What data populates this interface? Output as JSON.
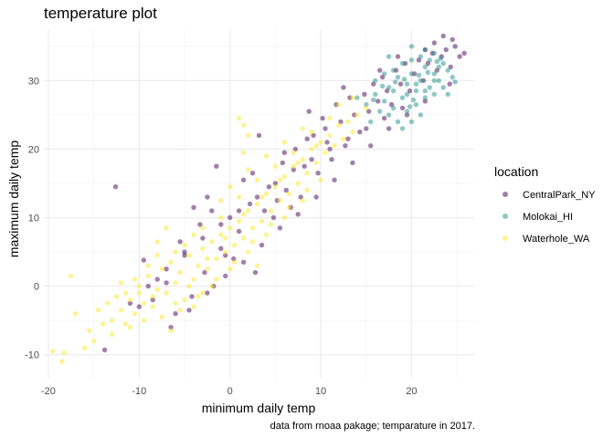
{
  "chart_data": {
    "type": "scatter",
    "title": "temperature plot",
    "xlabel": "minimum daily temp",
    "ylabel": "maximum daily temp",
    "caption": "data from rnoaa pakage; temparature in 2017.",
    "xlim": [
      -20.5,
      27.0
    ],
    "ylim": [
      -13.5,
      37.5
    ],
    "x_ticks": [
      -20,
      -10,
      0,
      10,
      20
    ],
    "y_ticks": [
      -10,
      0,
      10,
      20,
      30
    ],
    "grid": true,
    "legend": {
      "title": "location",
      "placement": "right"
    },
    "point_opacity": 0.5,
    "series": [
      {
        "name": "CentralPark_NY",
        "color": "#440154",
        "points": [
          [
            -13.8,
            -9.3
          ],
          [
            -12.6,
            14.5
          ],
          [
            -10.0,
            -3.0
          ],
          [
            -9.5,
            3.8
          ],
          [
            -8.5,
            -2.0
          ],
          [
            -8.0,
            1.0
          ],
          [
            -7.0,
            0.5
          ],
          [
            -6.0,
            -4.0
          ],
          [
            -5.5,
            6.5
          ],
          [
            -5.0,
            5.0
          ],
          [
            -4.2,
            -1.5
          ],
          [
            -4.0,
            11.5
          ],
          [
            -3.3,
            9.0
          ],
          [
            -2.8,
            2.0
          ],
          [
            -2.5,
            13.0
          ],
          [
            -1.8,
            0.0
          ],
          [
            -1.5,
            17.5
          ],
          [
            -1.0,
            5.5
          ],
          [
            -0.5,
            4.5
          ],
          [
            0.0,
            10.0
          ],
          [
            0.4,
            4.0
          ],
          [
            1.0,
            8.0
          ],
          [
            1.5,
            15.5
          ],
          [
            2.2,
            12.0
          ],
          [
            2.8,
            2.0
          ],
          [
            3.2,
            22.0
          ],
          [
            3.8,
            11.0
          ],
          [
            4.3,
            14.5
          ],
          [
            4.8,
            10.0
          ],
          [
            5.2,
            12.5
          ],
          [
            5.8,
            18.0
          ],
          [
            6.2,
            14.0
          ],
          [
            6.7,
            11.5
          ],
          [
            7.2,
            20.0
          ],
          [
            7.8,
            13.0
          ],
          [
            8.2,
            17.5
          ],
          [
            8.7,
            25.5
          ],
          [
            9.2,
            22.0
          ],
          [
            9.7,
            16.5
          ],
          [
            10.2,
            24.5
          ],
          [
            10.7,
            21.0
          ],
          [
            11.2,
            18.5
          ],
          [
            11.7,
            26.5
          ],
          [
            12.2,
            24.0
          ],
          [
            12.7,
            20.5
          ],
          [
            13.2,
            27.5
          ],
          [
            13.7,
            25.0
          ],
          [
            14.3,
            22.5
          ],
          [
            14.8,
            28.0
          ],
          [
            15.3,
            25.5
          ],
          [
            15.8,
            29.5
          ],
          [
            16.3,
            27.0
          ],
          [
            16.8,
            30.5
          ],
          [
            17.3,
            28.5
          ],
          [
            17.8,
            26.5
          ],
          [
            18.3,
            31.5
          ],
          [
            18.8,
            29.5
          ],
          [
            19.3,
            32.5
          ],
          [
            19.8,
            28.5
          ],
          [
            20.3,
            31.0
          ],
          [
            20.8,
            33.0
          ],
          [
            21.3,
            30.0
          ],
          [
            21.8,
            32.5
          ],
          [
            22.3,
            34.0
          ],
          [
            22.8,
            31.5
          ],
          [
            23.3,
            33.5
          ],
          [
            23.8,
            34.5
          ],
          [
            24.3,
            32.0
          ],
          [
            24.8,
            35.0
          ],
          [
            25.3,
            33.5
          ],
          [
            25.8,
            34.0
          ],
          [
            23.5,
            36.5
          ],
          [
            24.2,
            29.5
          ],
          [
            21.5,
            27.0
          ],
          [
            19.0,
            26.0
          ],
          [
            17.0,
            24.5
          ],
          [
            15.0,
            23.0
          ],
          [
            13.0,
            21.5
          ],
          [
            11.0,
            20.0
          ],
          [
            9.0,
            18.5
          ],
          [
            7.0,
            17.0
          ],
          [
            5.0,
            15.0
          ],
          [
            3.0,
            13.0
          ],
          [
            1.0,
            11.0
          ],
          [
            -1.0,
            9.0
          ],
          [
            -3.0,
            7.0
          ],
          [
            -5.0,
            4.5
          ],
          [
            -7.0,
            2.5
          ],
          [
            -9.0,
            0.0
          ],
          [
            -11.0,
            -2.5
          ],
          [
            -6.5,
            -6.0
          ],
          [
            -4.5,
            -3.5
          ],
          [
            -2.5,
            -1.0
          ],
          [
            -0.5,
            1.5
          ],
          [
            1.5,
            3.5
          ],
          [
            3.5,
            6.0
          ],
          [
            5.5,
            8.5
          ],
          [
            7.5,
            10.5
          ],
          [
            9.5,
            13.0
          ],
          [
            11.5,
            15.5
          ],
          [
            13.5,
            18.0
          ],
          [
            15.5,
            20.5
          ],
          [
            17.5,
            23.0
          ],
          [
            19.5,
            25.0
          ],
          [
            21.5,
            34.5
          ],
          [
            22.5,
            35.5
          ],
          [
            24.5,
            36.0
          ],
          [
            18.5,
            33.5
          ],
          [
            16.5,
            31.5
          ],
          [
            12.5,
            29.0
          ],
          [
            -2.0,
            11.0
          ],
          [
            2.5,
            16.5
          ],
          [
            6.0,
            19.5
          ],
          [
            8.5,
            21.5
          ],
          [
            10.5,
            23.0
          ]
        ]
      },
      {
        "name": "Molokai_HI",
        "color": "#21908C",
        "points": [
          [
            15.0,
            26.5
          ],
          [
            15.5,
            24.0
          ],
          [
            16.0,
            28.0
          ],
          [
            16.5,
            25.5
          ],
          [
            17.0,
            27.0
          ],
          [
            17.5,
            29.0
          ],
          [
            18.0,
            26.0
          ],
          [
            18.5,
            30.5
          ],
          [
            19.0,
            27.5
          ],
          [
            19.5,
            29.5
          ],
          [
            20.0,
            31.0
          ],
          [
            20.5,
            28.5
          ],
          [
            21.0,
            30.0
          ],
          [
            21.5,
            32.0
          ],
          [
            22.0,
            29.0
          ],
          [
            22.5,
            31.0
          ],
          [
            23.0,
            30.0
          ],
          [
            23.5,
            32.5
          ],
          [
            24.0,
            31.5
          ],
          [
            24.5,
            30.5
          ],
          [
            18.0,
            31.5
          ],
          [
            19.0,
            32.5
          ],
          [
            20.0,
            33.0
          ],
          [
            21.0,
            33.5
          ],
          [
            22.0,
            33.0
          ],
          [
            23.0,
            32.0
          ],
          [
            17.5,
            25.0
          ],
          [
            18.5,
            24.0
          ],
          [
            19.5,
            25.5
          ],
          [
            20.5,
            26.5
          ],
          [
            21.5,
            27.5
          ],
          [
            22.5,
            28.0
          ],
          [
            20.0,
            24.0
          ],
          [
            19.0,
            23.0
          ],
          [
            21.0,
            25.0
          ],
          [
            17.0,
            31.0
          ],
          [
            16.0,
            30.0
          ],
          [
            18.0,
            28.5
          ],
          [
            19.5,
            28.0
          ],
          [
            20.5,
            29.5
          ],
          [
            21.5,
            28.5
          ],
          [
            22.5,
            30.0
          ],
          [
            23.5,
            29.0
          ],
          [
            20.0,
            35.0
          ],
          [
            21.5,
            34.5
          ],
          [
            22.5,
            34.0
          ],
          [
            14.0,
            27.5
          ],
          [
            17.5,
            33.5
          ],
          [
            24.0,
            28.0
          ],
          [
            20.8,
            30.8
          ],
          [
            19.2,
            30.2
          ],
          [
            18.2,
            29.8
          ],
          [
            21.8,
            31.2
          ],
          [
            22.8,
            32.8
          ],
          [
            16.8,
            29.2
          ],
          [
            15.8,
            27.2
          ],
          [
            23.2,
            33.2
          ],
          [
            24.8,
            29.8
          ],
          [
            20.2,
            27.2
          ],
          [
            19.8,
            26.2
          ]
        ]
      },
      {
        "name": "Waterhole_WA",
        "color": "#FDE725",
        "points": [
          [
            -19.5,
            -9.5
          ],
          [
            -18.5,
            -11.0
          ],
          [
            -18.3,
            -9.7
          ],
          [
            -17.5,
            1.5
          ],
          [
            -17.0,
            -4.0
          ],
          [
            -16.0,
            -9.0
          ],
          [
            -15.0,
            -8.0
          ],
          [
            -14.5,
            -3.5
          ],
          [
            -14.0,
            -5.5
          ],
          [
            -13.5,
            -2.5
          ],
          [
            -13.0,
            -5.0
          ],
          [
            -12.5,
            -1.5
          ],
          [
            -12.0,
            -3.5
          ],
          [
            -11.5,
            -5.5
          ],
          [
            -11.0,
            -2.0
          ],
          [
            -10.5,
            -4.0
          ],
          [
            -10.0,
            0.0
          ],
          [
            -9.5,
            -2.5
          ],
          [
            -9.0,
            1.5
          ],
          [
            -8.5,
            -3.0
          ],
          [
            -8.0,
            -0.5
          ],
          [
            -7.5,
            2.5
          ],
          [
            -7.0,
            -1.0
          ],
          [
            -6.5,
            3.5
          ],
          [
            -6.0,
            0.5
          ],
          [
            -5.5,
            2.0
          ],
          [
            -5.0,
            -2.0
          ],
          [
            -4.5,
            4.5
          ],
          [
            -4.0,
            1.0
          ],
          [
            -3.5,
            3.0
          ],
          [
            -3.0,
            5.5
          ],
          [
            -2.5,
            2.5
          ],
          [
            -2.0,
            6.5
          ],
          [
            -1.5,
            4.0
          ],
          [
            -1.0,
            7.5
          ],
          [
            -0.5,
            5.0
          ],
          [
            0.0,
            8.5
          ],
          [
            0.5,
            6.0
          ],
          [
            1.0,
            9.5
          ],
          [
            1.5,
            7.0
          ],
          [
            2.0,
            11.0
          ],
          [
            2.5,
            8.5
          ],
          [
            3.0,
            12.0
          ],
          [
            3.5,
            9.5
          ],
          [
            4.0,
            13.5
          ],
          [
            4.5,
            11.0
          ],
          [
            5.0,
            14.5
          ],
          [
            5.5,
            12.5
          ],
          [
            6.0,
            16.0
          ],
          [
            6.5,
            13.5
          ],
          [
            7.0,
            17.5
          ],
          [
            7.5,
            15.0
          ],
          [
            8.0,
            18.5
          ],
          [
            8.5,
            16.5
          ],
          [
            9.0,
            20.0
          ],
          [
            9.5,
            18.0
          ],
          [
            10.0,
            21.0
          ],
          [
            10.5,
            19.5
          ],
          [
            11.0,
            22.0
          ],
          [
            11.5,
            20.5
          ],
          [
            12.0,
            23.5
          ],
          [
            12.5,
            21.5
          ],
          [
            13.0,
            24.0
          ],
          [
            13.5,
            22.5
          ],
          [
            14.0,
            25.0
          ],
          [
            15.0,
            26.0
          ],
          [
            1.0,
            24.5
          ],
          [
            1.5,
            23.5
          ],
          [
            1.5,
            19.5
          ],
          [
            2.0,
            22.0
          ],
          [
            -7.0,
            8.5
          ],
          [
            -9.0,
            3.0
          ],
          [
            -6.0,
            -2.5
          ],
          [
            -4.0,
            -3.0
          ],
          [
            -2.0,
            0.0
          ],
          [
            0.0,
            2.5
          ],
          [
            2.0,
            5.0
          ],
          [
            4.0,
            7.5
          ],
          [
            6.0,
            10.0
          ],
          [
            8.0,
            12.5
          ],
          [
            10.0,
            15.5
          ],
          [
            -12.0,
            0.5
          ],
          [
            -10.5,
            1.0
          ],
          [
            -8.0,
            4.5
          ],
          [
            -5.0,
            6.0
          ],
          [
            -3.0,
            8.5
          ],
          [
            -1.0,
            10.0
          ],
          [
            1.0,
            13.0
          ],
          [
            3.0,
            15.5
          ],
          [
            5.0,
            17.5
          ],
          [
            7.0,
            19.5
          ],
          [
            9.0,
            22.5
          ],
          [
            11.0,
            24.5
          ],
          [
            12.0,
            26.5
          ],
          [
            -15.5,
            -6.5
          ],
          [
            -13.0,
            -7.0
          ],
          [
            -11.0,
            -6.0
          ],
          [
            -9.5,
            -5.0
          ],
          [
            -7.5,
            -4.5
          ],
          [
            -5.5,
            -3.5
          ],
          [
            -3.5,
            -1.5
          ],
          [
            -1.5,
            1.0
          ],
          [
            0.5,
            3.5
          ],
          [
            2.5,
            6.5
          ],
          [
            4.5,
            9.0
          ],
          [
            6.5,
            11.5
          ],
          [
            8.5,
            14.0
          ],
          [
            -6.5,
            -6.5
          ],
          [
            -4.5,
            0.0
          ],
          [
            -2.5,
            4.0
          ],
          [
            -0.5,
            7.0
          ],
          [
            1.5,
            10.5
          ],
          [
            3.5,
            13.0
          ],
          [
            5.5,
            15.5
          ],
          [
            7.5,
            18.0
          ],
          [
            9.5,
            20.5
          ],
          [
            -8.5,
            -1.5
          ],
          [
            -10.0,
            -1.0
          ],
          [
            -11.5,
            -1.0
          ],
          [
            -3.0,
            -1.0
          ],
          [
            3.0,
            3.0
          ],
          [
            -1.0,
            12.5
          ],
          [
            0.0,
            14.5
          ],
          [
            2.0,
            17.0
          ],
          [
            4.0,
            19.0
          ],
          [
            6.0,
            21.0
          ],
          [
            8.0,
            23.0
          ],
          [
            -4.0,
            7.5
          ],
          [
            -6.0,
            5.0
          ],
          [
            -8.0,
            6.5
          ],
          [
            13.5,
            27.5
          ]
        ]
      }
    ]
  }
}
